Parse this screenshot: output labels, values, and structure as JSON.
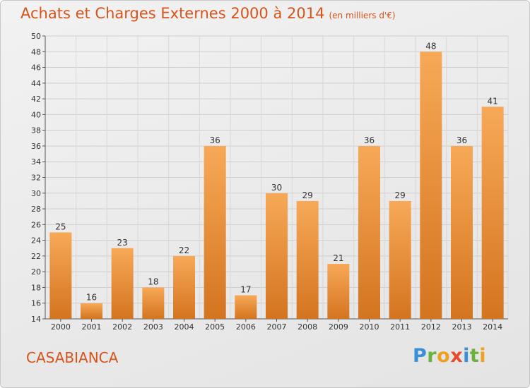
{
  "title": "Achats et Charges Externes 2000 à 2014",
  "subtitle": "(en milliers d'€)",
  "commune": "CASABIANCA",
  "brand": {
    "letters": [
      "P",
      "r",
      "o",
      "x",
      "i",
      "t",
      "i"
    ],
    "colors": [
      "#3a8fd6",
      "#6ab23c",
      "#f0a020",
      "#e84a2a",
      "#3a8fd6",
      "#6ab23c",
      "#f0a020"
    ]
  },
  "colors": {
    "bar_light": "#f7a957",
    "bar_dark": "#d4741f",
    "title": "#d6531a"
  },
  "chart_data": {
    "type": "bar",
    "title": "Achats et Charges Externes 2000 à 2014",
    "subtitle": "(en milliers d'€)",
    "categories": [
      "2000",
      "2001",
      "2002",
      "2003",
      "2004",
      "2005",
      "2006",
      "2007",
      "2008",
      "2009",
      "2010",
      "2011",
      "2012",
      "2013",
      "2014"
    ],
    "values": [
      25,
      16,
      23,
      18,
      22,
      36,
      17,
      30,
      29,
      21,
      36,
      29,
      48,
      36,
      41
    ],
    "ylim": [
      14,
      50
    ],
    "yticks": [
      14,
      16,
      18,
      20,
      22,
      24,
      26,
      28,
      30,
      32,
      34,
      36,
      38,
      40,
      42,
      44,
      46,
      48,
      50
    ],
    "grid": true,
    "xlabel": "",
    "ylabel": ""
  }
}
